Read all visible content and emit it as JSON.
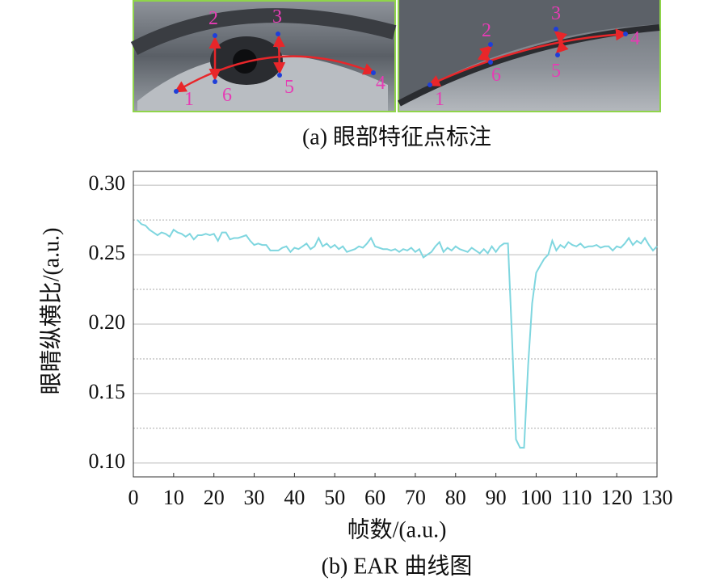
{
  "figure_a": {
    "caption": "(a) 眼部特征点标注",
    "left_point_labels": [
      "1",
      "2",
      "3",
      "4",
      "5",
      "6"
    ],
    "right_point_labels": [
      "1",
      "2",
      "3",
      "4",
      "5",
      "6"
    ]
  },
  "chart_data": {
    "type": "line",
    "caption": "(b) EAR 曲线图",
    "x_label": "帧数/(a.u.)",
    "y_label": "眼睛纵横比/(a.u.)",
    "x": [
      1,
      2,
      3,
      4,
      5,
      6,
      7,
      8,
      9,
      10,
      11,
      12,
      13,
      14,
      15,
      16,
      17,
      18,
      19,
      20,
      21,
      22,
      23,
      24,
      25,
      26,
      27,
      28,
      29,
      30,
      31,
      32,
      33,
      34,
      35,
      36,
      37,
      38,
      39,
      40,
      41,
      42,
      43,
      44,
      45,
      46,
      47,
      48,
      49,
      50,
      51,
      52,
      53,
      54,
      55,
      56,
      57,
      58,
      59,
      60,
      61,
      62,
      63,
      64,
      65,
      66,
      67,
      68,
      69,
      70,
      71,
      72,
      73,
      74,
      75,
      76,
      77,
      78,
      79,
      80,
      81,
      82,
      83,
      84,
      85,
      86,
      87,
      88,
      89,
      90,
      91,
      92,
      93,
      94,
      95,
      96,
      97,
      98,
      99,
      100,
      101,
      102,
      103,
      104,
      105,
      106,
      107,
      108,
      109,
      110,
      111,
      112,
      113,
      114,
      115,
      116,
      117,
      118,
      119,
      120,
      121,
      122,
      123,
      124,
      125,
      126,
      127,
      128,
      129,
      130
    ],
    "series": [
      {
        "name": "EAR",
        "color": "#7fd6df",
        "values": [
          0.275,
          0.272,
          0.271,
          0.268,
          0.266,
          0.264,
          0.266,
          0.265,
          0.263,
          0.268,
          0.266,
          0.265,
          0.263,
          0.265,
          0.261,
          0.264,
          0.264,
          0.265,
          0.264,
          0.265,
          0.26,
          0.266,
          0.266,
          0.261,
          0.262,
          0.262,
          0.263,
          0.264,
          0.26,
          0.257,
          0.258,
          0.257,
          0.257,
          0.253,
          0.253,
          0.253,
          0.255,
          0.256,
          0.252,
          0.255,
          0.254,
          0.256,
          0.258,
          0.254,
          0.256,
          0.262,
          0.256,
          0.258,
          0.255,
          0.257,
          0.254,
          0.256,
          0.252,
          0.253,
          0.254,
          0.256,
          0.255,
          0.258,
          0.262,
          0.256,
          0.255,
          0.254,
          0.254,
          0.253,
          0.254,
          0.252,
          0.254,
          0.253,
          0.255,
          0.252,
          0.254,
          0.248,
          0.25,
          0.252,
          0.256,
          0.259,
          0.252,
          0.255,
          0.253,
          0.256,
          0.254,
          0.253,
          0.252,
          0.255,
          0.253,
          0.251,
          0.254,
          0.251,
          0.256,
          0.252,
          0.256,
          0.258,
          0.258,
          0.19,
          0.117,
          0.111,
          0.111,
          0.17,
          0.215,
          0.237,
          0.242,
          0.247,
          0.25,
          0.26,
          0.253,
          0.257,
          0.255,
          0.259,
          0.257,
          0.256,
          0.258,
          0.255,
          0.256,
          0.256,
          0.257,
          0.255,
          0.256,
          0.256,
          0.253,
          0.256,
          0.255,
          0.258,
          0.262,
          0.257,
          0.26,
          0.258,
          0.262,
          0.257,
          0.253,
          0.256
        ]
      }
    ],
    "xlim": [
      0,
      130
    ],
    "xticks": [
      0,
      10,
      20,
      30,
      40,
      50,
      60,
      70,
      80,
      90,
      100,
      110,
      120,
      130
    ],
    "ylim": [
      0.09,
      0.31
    ],
    "yticks": [
      {
        "value": 0.1,
        "label": "0.10"
      },
      0.15,
      {
        "value": 0.2,
        "label": "0.20"
      },
      0.25,
      {
        "value": 0.3,
        "label": "0.30"
      }
    ],
    "minor_grid": [
      0.125,
      0.175,
      0.225,
      0.275
    ],
    "grid": true
  }
}
